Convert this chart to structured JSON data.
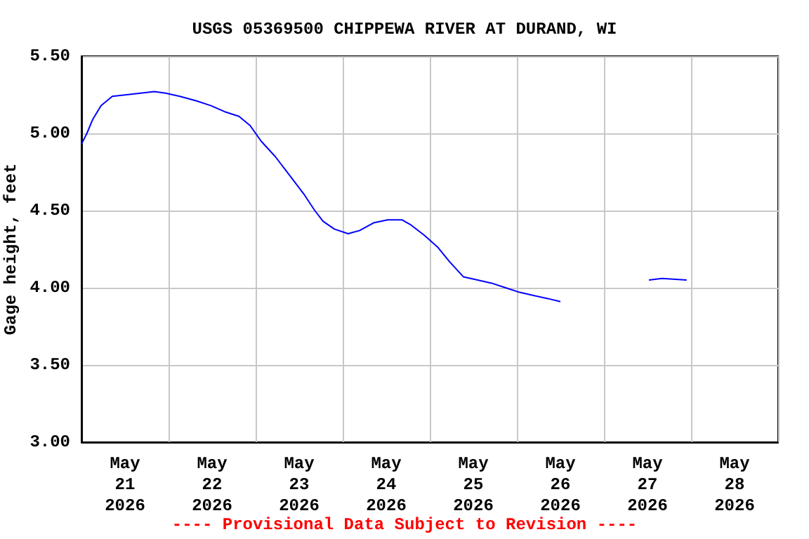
{
  "chart_data": {
    "type": "line",
    "title": "USGS 05369500 CHIPPEWA RIVER AT DURAND, WI",
    "ylabel": "Gage height, feet",
    "annotations": [
      "---- Provisional Data Subject to Revision ----"
    ],
    "x": [
      "2026-05-21T00:00",
      "2026-05-21T01:30",
      "2026-05-21T03:06",
      "2026-05-21T05:24",
      "2026-05-21T08:30",
      "2026-05-21T12:24",
      "2026-05-21T16:18",
      "2026-05-21T20:06",
      "2026-05-21T23:12",
      "2026-05-22T03:06",
      "2026-05-22T07:42",
      "2026-05-22T11:36",
      "2026-05-22T15:30",
      "2026-05-22T19:24",
      "2026-05-22T22:30",
      "2026-05-23T01:30",
      "2026-05-23T05:24",
      "2026-05-23T09:18",
      "2026-05-23T13:12",
      "2026-05-23T16:18",
      "2026-05-23T18:36",
      "2026-05-23T21:42",
      "2026-05-24T01:30",
      "2026-05-24T04:36",
      "2026-05-24T08:30",
      "2026-05-24T12:24",
      "2026-05-24T16:18",
      "2026-05-24T18:36",
      "2026-05-24T22:30",
      "2026-05-25T02:18",
      "2026-05-25T05:24",
      "2026-05-25T09:18",
      "2026-05-25T13:12",
      "2026-05-25T17:00",
      "2026-05-25T20:54",
      "2026-05-26T00:48",
      "2026-05-26T04:36",
      "2026-05-26T08:30",
      "2026-05-26T12:00",
      "2026-05-27T01:00",
      "2026-05-27T12:24",
      "2026-05-27T16:00",
      "2026-05-27T22:48"
    ],
    "series": [
      {
        "color": "#0000ff",
        "values": [
          4.93,
          5.0,
          5.09,
          5.18,
          5.24,
          5.25,
          5.26,
          5.27,
          5.26,
          5.24,
          5.21,
          5.18,
          5.14,
          5.11,
          5.05,
          4.95,
          4.85,
          4.73,
          4.61,
          4.5,
          4.43,
          4.38,
          4.35,
          4.37,
          4.42,
          4.44,
          4.44,
          4.41,
          4.34,
          4.26,
          4.17,
          4.07,
          4.05,
          4.03,
          4.0,
          3.97,
          3.95,
          3.93,
          3.91,
          null,
          4.05,
          4.06,
          4.05
        ]
      }
    ],
    "xlim": [
      "2026-05-21T00:00",
      "2026-05-29T00:00"
    ],
    "xticks": [
      {
        "value": "2026-05-21T00:00",
        "label": null
      },
      {
        "value": "2026-05-21T12:00",
        "label": "May\n21\n2026"
      },
      {
        "value": "2026-05-22T00:00",
        "label": null
      },
      {
        "value": "2026-05-22T12:00",
        "label": "May\n22\n2026"
      },
      {
        "value": "2026-05-23T00:00",
        "label": null
      },
      {
        "value": "2026-05-23T12:00",
        "label": "May\n23\n2026"
      },
      {
        "value": "2026-05-24T00:00",
        "label": null
      },
      {
        "value": "2026-05-24T12:00",
        "label": "May\n24\n2026"
      },
      {
        "value": "2026-05-25T00:00",
        "label": null
      },
      {
        "value": "2026-05-25T12:00",
        "label": "May\n25\n2026"
      },
      {
        "value": "2026-05-26T00:00",
        "label": null
      },
      {
        "value": "2026-05-26T12:00",
        "label": "May\n26\n2026"
      },
      {
        "value": "2026-05-27T00:00",
        "label": null
      },
      {
        "value": "2026-05-27T12:00",
        "label": "May\n27\n2026"
      },
      {
        "value": "2026-05-28T00:00",
        "label": null
      },
      {
        "value": "2026-05-28T12:00",
        "label": "May\n28\n2026"
      },
      {
        "value": "2026-05-29T00:00",
        "label": null
      }
    ],
    "ylim": [
      3.0,
      5.5
    ],
    "yticks": [
      {
        "value": 3.0,
        "label": "3.00"
      },
      {
        "value": 3.5,
        "label": "3.50"
      },
      {
        "value": 4.0,
        "label": "4.00"
      },
      {
        "value": 4.5,
        "label": "4.50"
      },
      {
        "value": 5.0,
        "label": "5.00"
      },
      {
        "value": 5.5,
        "label": "5.50"
      }
    ],
    "grid": true,
    "marker": "none",
    "line_style": "solid"
  }
}
